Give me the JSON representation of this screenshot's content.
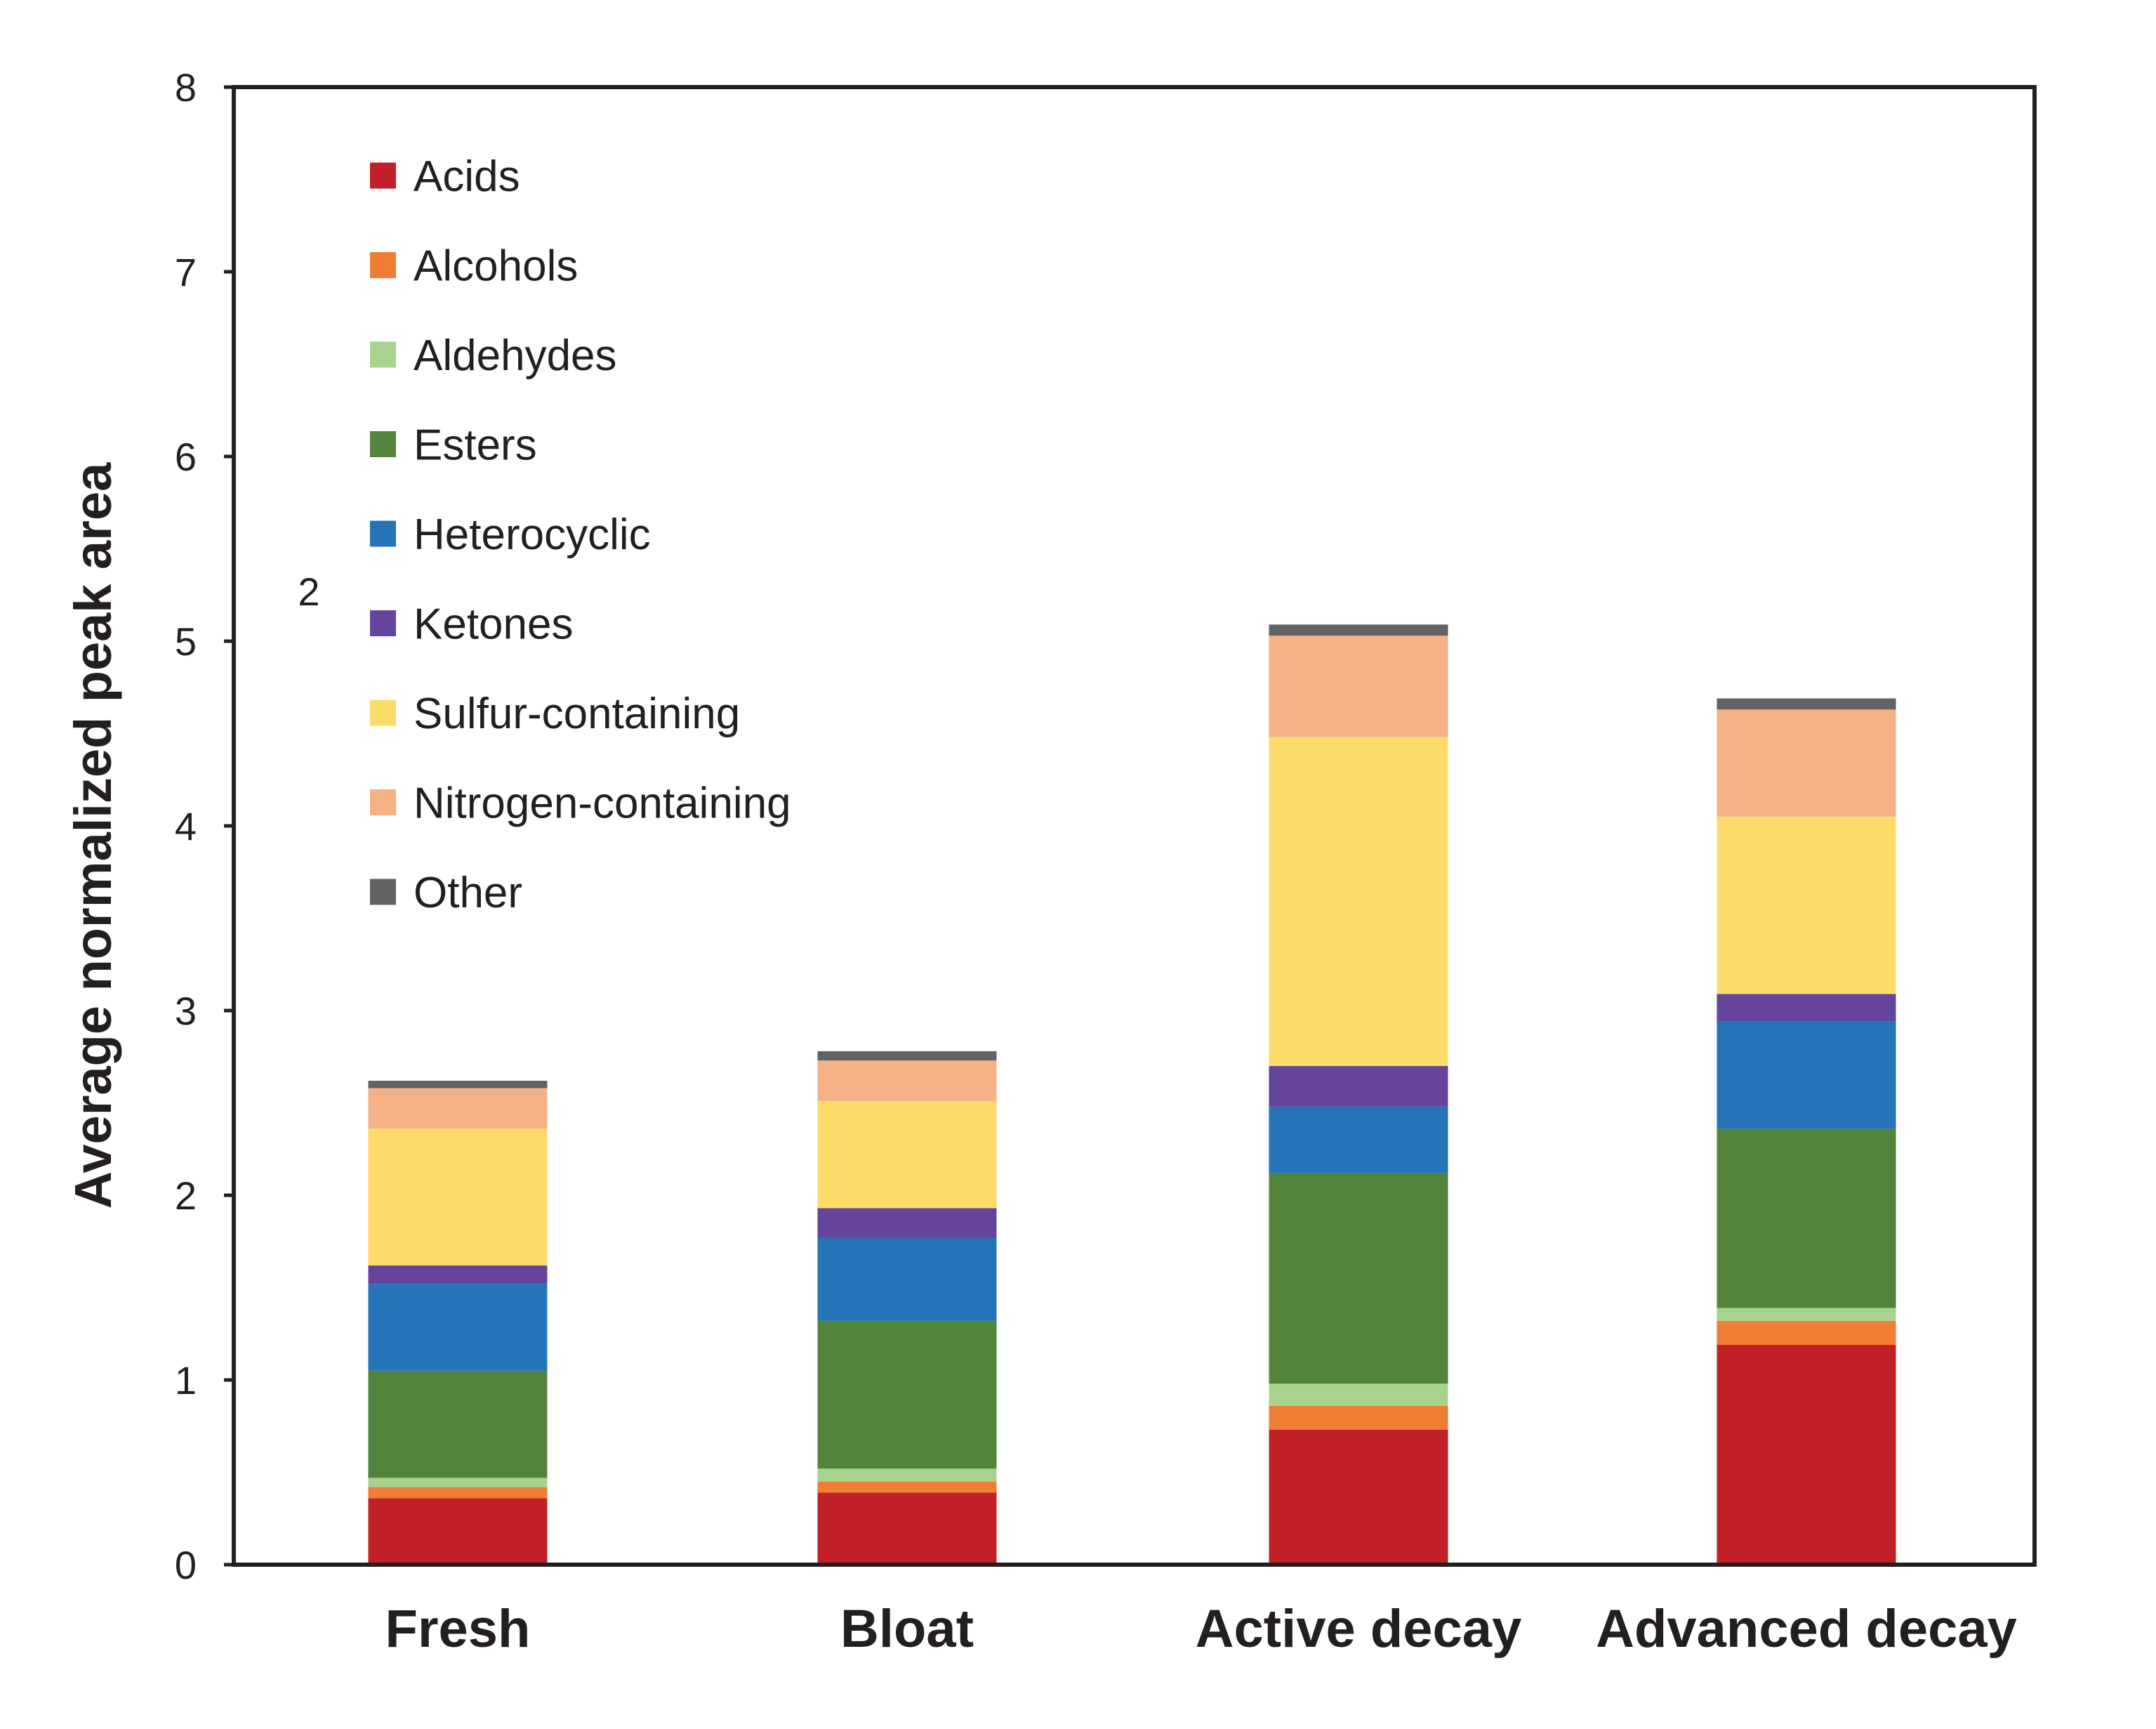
{
  "chart_data": {
    "type": "bar",
    "stacked": true,
    "title": "",
    "xlabel": "",
    "ylabel": "Average normalized peak area",
    "ylim": [
      0,
      8
    ],
    "yticks": [
      0,
      1,
      2,
      3,
      4,
      5,
      6,
      7,
      8
    ],
    "categories": [
      "Fresh",
      "Bloat",
      "Active decay",
      "Advanced decay"
    ],
    "legend_position": "top-left",
    "annotation": "2",
    "series": [
      {
        "name": "Acids",
        "color": "#c02026",
        "values": [
          0.36,
          0.39,
          0.73,
          1.19
        ]
      },
      {
        "name": "Alcohols",
        "color": "#ef7d34",
        "values": [
          0.06,
          0.06,
          0.13,
          0.13
        ]
      },
      {
        "name": "Aldehydes",
        "color": "#a8d38f",
        "values": [
          0.05,
          0.07,
          0.12,
          0.07
        ]
      },
      {
        "name": "Esters",
        "color": "#53843b",
        "values": [
          0.58,
          0.8,
          1.14,
          0.97
        ]
      },
      {
        "name": "Heterocyclic",
        "color": "#2574b7",
        "values": [
          0.47,
          0.45,
          0.36,
          0.58
        ]
      },
      {
        "name": "Ketones",
        "color": "#65449b",
        "values": [
          0.1,
          0.16,
          0.22,
          0.15
        ]
      },
      {
        "name": "Sulfur-containing",
        "color": "#fddb6a",
        "values": [
          0.74,
          0.58,
          1.78,
          0.96
        ]
      },
      {
        "name": "Nitrogen-containing",
        "color": "#f4b186",
        "values": [
          0.22,
          0.22,
          0.55,
          0.58
        ]
      },
      {
        "name": "Other",
        "color": "#626262",
        "values": [
          0.04,
          0.05,
          0.06,
          0.06
        ]
      }
    ]
  }
}
